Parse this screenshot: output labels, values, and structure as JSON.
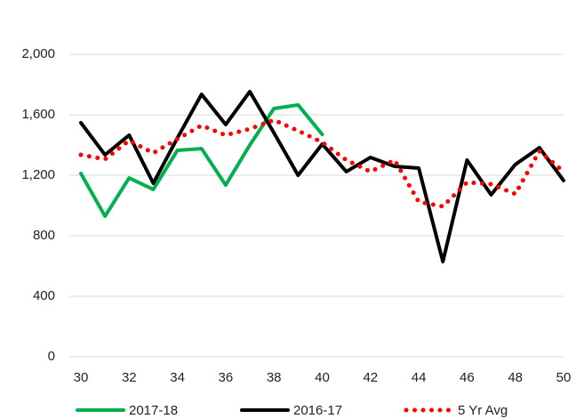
{
  "chart_data": {
    "type": "line",
    "x": [
      30,
      31,
      32,
      33,
      34,
      35,
      36,
      37,
      38,
      39,
      40,
      41,
      42,
      43,
      44,
      45,
      46,
      47,
      48,
      49,
      50
    ],
    "series": [
      {
        "name": "2017-18",
        "color": "#00b050",
        "style": "solid",
        "values": [
          1212,
          929,
          1182,
          1106,
          1365,
          1376,
          1135,
          1400,
          1641,
          1665,
          1470,
          null,
          null,
          null,
          null,
          null,
          null,
          null,
          null,
          null,
          null
        ]
      },
      {
        "name": "2016-17",
        "color": "#000000",
        "style": "solid",
        "values": [
          1547,
          1335,
          1465,
          1147,
          1447,
          1735,
          1535,
          1753,
          1480,
          1200,
          1406,
          1224,
          1318,
          1259,
          1247,
          629,
          1300,
          1071,
          1271,
          1382,
          1165
        ]
      },
      {
        "name": "5 Yr Avg",
        "color": "#ff0000",
        "style": "dotted",
        "values": [
          1335,
          1306,
          1429,
          1347,
          1440,
          1529,
          1465,
          1506,
          1565,
          1494,
          1418,
          1300,
          1224,
          1300,
          1024,
          994,
          1153,
          1141,
          1076,
          1359,
          1224
        ]
      }
    ],
    "xlim": [
      30,
      50
    ],
    "xticks": [
      30,
      32,
      34,
      36,
      38,
      40,
      42,
      44,
      46,
      48,
      50
    ],
    "ylim": [
      0,
      2000
    ],
    "yticks": [
      0,
      400,
      800,
      {
        "value": 1200,
        "label": "1,200"
      },
      {
        "value": 1600,
        "label": "1,600"
      },
      {
        "value": 2000,
        "label": "2,000"
      }
    ],
    "grid": true,
    "legend": "bottom"
  }
}
